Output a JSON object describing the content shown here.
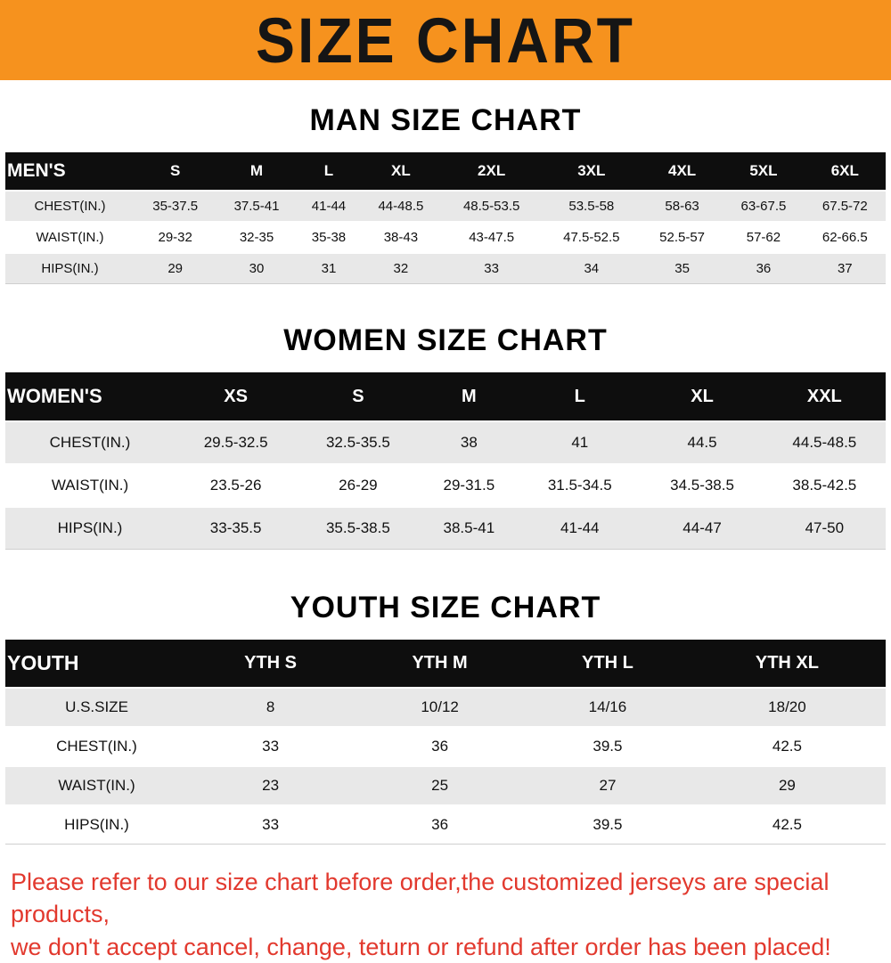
{
  "banner": {
    "title": "SIZE CHART",
    "bg_color": "#F6921E",
    "text_color": "#151515"
  },
  "colors": {
    "table_header_bg": "#0e0e0e",
    "row_alt_bg": "#e8e8e8",
    "note_text": "#E2392E"
  },
  "sections": [
    {
      "heading": "MAN SIZE CHART",
      "table": {
        "header": [
          "MEN'S",
          "S",
          "M",
          "L",
          "XL",
          "2XL",
          "3XL",
          "4XL",
          "5XL",
          "6XL"
        ],
        "rows": [
          [
            "CHEST(IN.)",
            "35-37.5",
            "37.5-41",
            "41-44",
            "44-48.5",
            "48.5-53.5",
            "53.5-58",
            "58-63",
            "63-67.5",
            "67.5-72"
          ],
          [
            "WAIST(IN.)",
            "29-32",
            "32-35",
            "35-38",
            "38-43",
            "43-47.5",
            "47.5-52.5",
            "52.5-57",
            "57-62",
            "62-66.5"
          ],
          [
            "HIPS(IN.)",
            "29",
            "30",
            "31",
            "32",
            "33",
            "34",
            "35",
            "36",
            "37"
          ]
        ]
      }
    },
    {
      "heading": "WOMEN SIZE CHART",
      "table": {
        "header": [
          "WOMEN'S",
          "XS",
          "S",
          "M",
          "L",
          "XL",
          "XXL"
        ],
        "rows": [
          [
            "CHEST(IN.)",
            "29.5-32.5",
            "32.5-35.5",
            "38",
            "41",
            "44.5",
            "44.5-48.5"
          ],
          [
            "WAIST(IN.)",
            "23.5-26",
            "26-29",
            "29-31.5",
            "31.5-34.5",
            "34.5-38.5",
            "38.5-42.5"
          ],
          [
            "HIPS(IN.)",
            "33-35.5",
            "35.5-38.5",
            "38.5-41",
            "41-44",
            "44-47",
            "47-50"
          ]
        ]
      }
    },
    {
      "heading": "YOUTH SIZE CHART",
      "table": {
        "header": [
          "YOUTH",
          "YTH S",
          "YTH M",
          "YTH L",
          "YTH XL"
        ],
        "rows": [
          [
            "U.S.SIZE",
            "8",
            "10/12",
            "14/16",
            "18/20"
          ],
          [
            "CHEST(IN.)",
            "33",
            "36",
            "39.5",
            "42.5"
          ],
          [
            "WAIST(IN.)",
            "23",
            "25",
            "27",
            "29"
          ],
          [
            "HIPS(IN.)",
            "33",
            "36",
            "39.5",
            "42.5"
          ]
        ]
      }
    }
  ],
  "footer": {
    "line1": "Please refer to our size chart before order,the customized jerseys are special products,",
    "line2": "we don't accept cancel, change, teturn or refund after order has been placed!"
  }
}
